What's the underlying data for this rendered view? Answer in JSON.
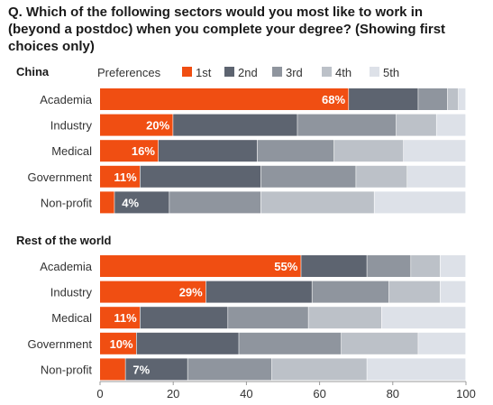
{
  "title": "Q. Which of the following sectors would you most like to work in (beyond a postdoc) when you complete your degree? (Showing first choices only)",
  "chart_data": {
    "type": "bar",
    "orientation": "horizontal",
    "stacked": true,
    "legend_title": "Preferences",
    "legend_position": "top",
    "series": [
      {
        "name": "1st",
        "color": "#f04e12"
      },
      {
        "name": "2nd",
        "color": "#5d6470"
      },
      {
        "name": "3rd",
        "color": "#8f959e"
      },
      {
        "name": "4th",
        "color": "#bcc1c8"
      },
      {
        "name": "5th",
        "color": "#dde1e8"
      }
    ],
    "categories": [
      "Academia",
      "Industry",
      "Medical",
      "Government",
      "Non-profit"
    ],
    "groups": [
      {
        "name": "China",
        "values": [
          [
            68,
            19,
            8,
            3,
            2
          ],
          [
            20,
            34,
            27,
            11,
            8
          ],
          [
            16,
            27,
            21,
            19,
            17
          ],
          [
            11,
            33,
            26,
            14,
            16
          ],
          [
            4,
            15,
            25,
            31,
            25
          ]
        ],
        "labels": [
          "68%",
          "20%",
          "16%",
          "11%",
          "4%"
        ]
      },
      {
        "name": "Rest of the world",
        "values": [
          [
            55,
            18,
            12,
            8,
            7
          ],
          [
            29,
            29,
            21,
            14,
            7
          ],
          [
            11,
            24,
            22,
            20,
            23
          ],
          [
            10,
            28,
            28,
            21,
            13
          ],
          [
            7,
            17,
            23,
            26,
            27
          ]
        ],
        "labels": [
          "55%",
          "29%",
          "11%",
          "10%",
          "7%"
        ]
      }
    ],
    "x_ticks": [
      "0",
      "20",
      "40",
      "60",
      "80",
      "100"
    ],
    "xlim": [
      0,
      100
    ],
    "grid": false
  }
}
